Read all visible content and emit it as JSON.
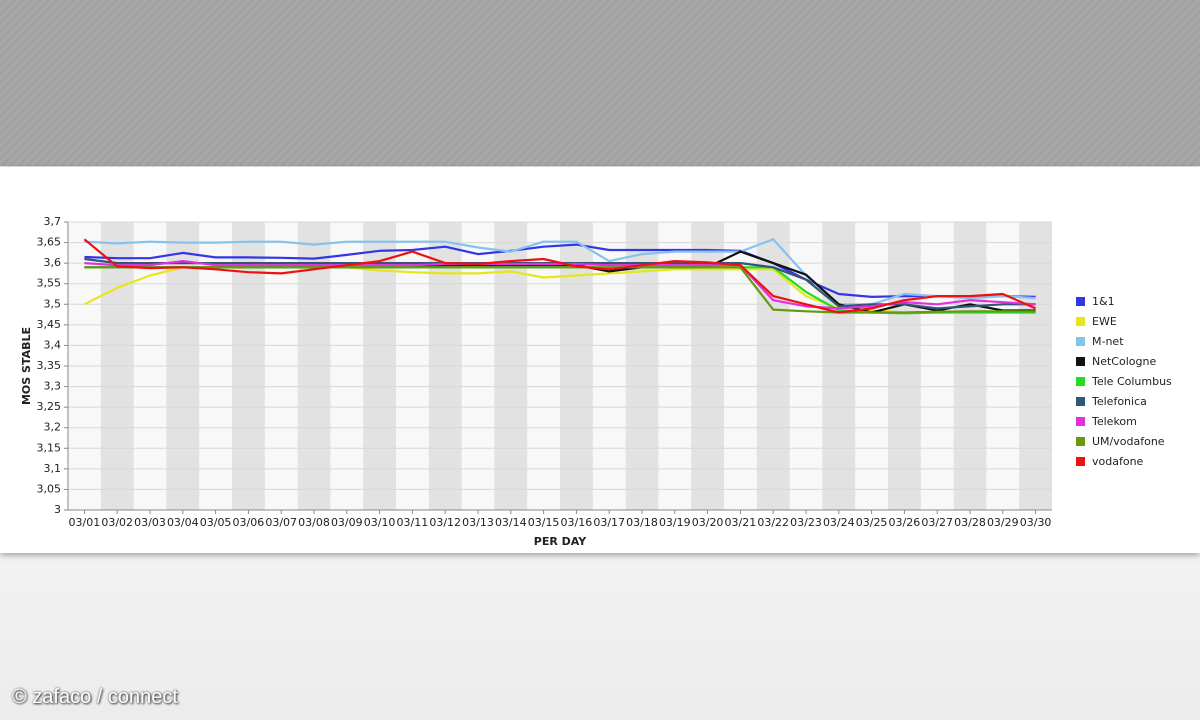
{
  "chart_data": {
    "type": "line",
    "y_label": "MOS STABLE",
    "x_label": "PER DAY",
    "categories": [
      "03/01",
      "03/02",
      "03/03",
      "03/04",
      "03/05",
      "03/06",
      "03/07",
      "03/08",
      "03/09",
      "03/10",
      "03/11",
      "03/12",
      "03/13",
      "03/14",
      "03/15",
      "03/16",
      "03/17",
      "03/18",
      "03/19",
      "03/20",
      "03/21",
      "03/22",
      "03/23",
      "03/24",
      "03/25",
      "03/26",
      "03/27",
      "03/28",
      "03/29",
      "03/30"
    ],
    "ylim": [
      3,
      3.7
    ],
    "yticks": [
      3,
      {
        "value": 3.05,
        "label": "3,05"
      },
      {
        "value": 3.1,
        "label": "3,1"
      },
      {
        "value": 3.15,
        "label": "3,15"
      },
      {
        "value": 3.2,
        "label": "3,2"
      },
      {
        "value": 3.25,
        "label": "3,25"
      },
      {
        "value": 3.3,
        "label": "3,3"
      },
      {
        "value": 3.35,
        "label": "3,35"
      },
      {
        "value": 3.4,
        "label": "3,4"
      },
      {
        "value": 3.45,
        "label": "3,45"
      },
      {
        "value": 3.5,
        "label": "3,5"
      },
      {
        "value": 3.55,
        "label": "3,55"
      },
      {
        "value": 3.6,
        "label": "3,6"
      },
      {
        "value": 3.65,
        "label": "3,65"
      },
      {
        "value": 3.7,
        "label": "3,7"
      }
    ],
    "grid": true,
    "legend": "right",
    "series": [
      {
        "name": "1&1",
        "color": "#3535e8",
        "values": [
          3.615,
          3.612,
          3.612,
          3.625,
          3.614,
          3.614,
          3.613,
          3.611,
          3.62,
          3.63,
          3.632,
          3.64,
          3.622,
          3.63,
          3.64,
          3.645,
          3.632,
          3.632,
          3.632,
          3.632,
          3.63,
          3.6,
          3.56,
          3.525,
          3.518,
          3.52,
          3.52,
          3.52,
          3.52,
          3.518
        ]
      },
      {
        "name": "EWE",
        "color": "#e6e61a",
        "values": [
          3.5,
          3.54,
          3.57,
          3.59,
          3.59,
          3.59,
          3.59,
          3.59,
          3.59,
          3.582,
          3.578,
          3.575,
          3.575,
          3.58,
          3.565,
          3.57,
          3.575,
          3.58,
          3.585,
          3.585,
          3.585,
          3.585,
          3.52,
          3.49,
          3.485,
          3.48,
          3.48,
          3.48,
          3.48,
          3.48
        ]
      },
      {
        "name": "M-net",
        "color": "#86c2ee",
        "values": [
          3.652,
          3.648,
          3.652,
          3.65,
          3.65,
          3.652,
          3.652,
          3.645,
          3.652,
          3.652,
          3.652,
          3.652,
          3.638,
          3.628,
          3.652,
          3.652,
          3.605,
          3.622,
          3.628,
          3.628,
          3.628,
          3.658,
          3.57,
          3.5,
          3.5,
          3.525,
          3.52,
          3.515,
          3.52,
          3.515
        ]
      },
      {
        "name": "NetCologne",
        "color": "#111111",
        "values": [
          3.59,
          3.59,
          3.59,
          3.59,
          3.59,
          3.59,
          3.59,
          3.59,
          3.59,
          3.59,
          3.59,
          3.595,
          3.595,
          3.595,
          3.595,
          3.595,
          3.58,
          3.59,
          3.59,
          3.59,
          3.628,
          3.6,
          3.572,
          3.5,
          3.48,
          3.5,
          3.485,
          3.5,
          3.485,
          3.485
        ]
      },
      {
        "name": "Tele Columbus",
        "color": "#22dd22",
        "values": [
          3.59,
          3.59,
          3.59,
          3.59,
          3.59,
          3.59,
          3.59,
          3.59,
          3.59,
          3.59,
          3.59,
          3.59,
          3.59,
          3.59,
          3.59,
          3.59,
          3.59,
          3.59,
          3.59,
          3.59,
          3.59,
          3.59,
          3.53,
          3.485,
          3.48,
          3.478,
          3.48,
          3.48,
          3.48,
          3.48
        ]
      },
      {
        "name": "Telefonica",
        "color": "#335577",
        "values": [
          3.61,
          3.6,
          3.6,
          3.6,
          3.6,
          3.6,
          3.6,
          3.6,
          3.6,
          3.6,
          3.6,
          3.6,
          3.6,
          3.6,
          3.6,
          3.6,
          3.6,
          3.6,
          3.6,
          3.6,
          3.6,
          3.59,
          3.56,
          3.495,
          3.5,
          3.5,
          3.49,
          3.495,
          3.5,
          3.5
        ]
      },
      {
        "name": "Telekom",
        "color": "#e030e0",
        "values": [
          3.6,
          3.595,
          3.595,
          3.605,
          3.595,
          3.595,
          3.595,
          3.595,
          3.595,
          3.595,
          3.595,
          3.598,
          3.598,
          3.598,
          3.598,
          3.598,
          3.595,
          3.595,
          3.595,
          3.595,
          3.595,
          3.51,
          3.495,
          3.49,
          3.495,
          3.505,
          3.5,
          3.51,
          3.505,
          3.5
        ]
      },
      {
        "name": "UM/vodafone",
        "color": "#669910",
        "values": [
          3.59,
          3.59,
          3.59,
          3.59,
          3.59,
          3.59,
          3.59,
          3.59,
          3.59,
          3.59,
          3.59,
          3.59,
          3.59,
          3.59,
          3.59,
          3.59,
          3.59,
          3.59,
          3.59,
          3.59,
          3.59,
          3.487,
          3.483,
          3.48,
          3.48,
          3.48,
          3.482,
          3.483,
          3.483,
          3.483
        ]
      },
      {
        "name": "vodafone",
        "color": "#ee1111",
        "values": [
          3.658,
          3.592,
          3.588,
          3.59,
          3.585,
          3.578,
          3.575,
          3.585,
          3.595,
          3.605,
          3.628,
          3.6,
          3.598,
          3.605,
          3.61,
          3.592,
          3.585,
          3.595,
          3.605,
          3.602,
          3.595,
          3.52,
          3.5,
          3.48,
          3.49,
          3.51,
          3.52,
          3.52,
          3.525,
          3.49
        ]
      }
    ]
  },
  "credit": "© zafaco / connect"
}
